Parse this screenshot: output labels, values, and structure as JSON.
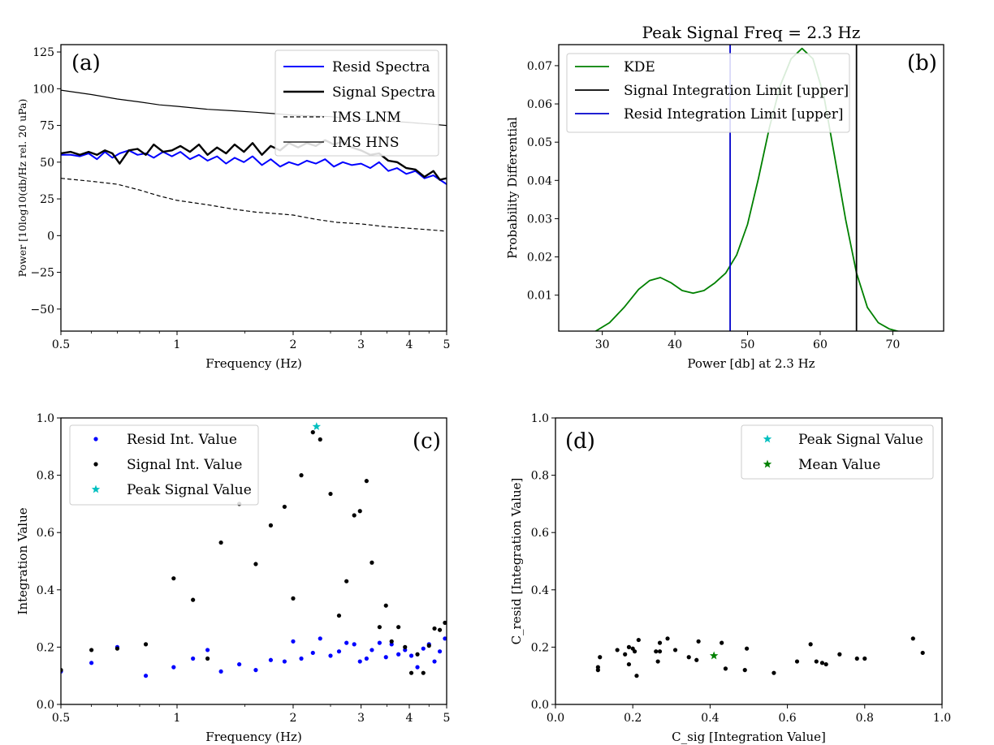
{
  "chart_data": [
    {
      "id": "a",
      "type": "line",
      "panel_label": "(a)",
      "xlabel": "Frequency (Hz)",
      "ylabel": "Power [10log10(db/Hz rel. 20 uPa)",
      "xscale": "log",
      "xlim": [
        0.5,
        5
      ],
      "ylim": [
        -65,
        130
      ],
      "xticks": [
        {
          "value": 0.5,
          "label": "0.5"
        },
        {
          "value": 1,
          "label": "1"
        },
        {
          "value": 2,
          "label": "2"
        },
        {
          "value": 3,
          "label": "3"
        },
        {
          "value": 4,
          "label": "4"
        },
        {
          "value": 5,
          "label": "5"
        }
      ],
      "yticks": [
        {
          "value": 125,
          "label": "125"
        },
        {
          "value": 100,
          "label": "100"
        },
        {
          "value": 75,
          "label": "75"
        },
        {
          "value": 50,
          "label": "50"
        },
        {
          "value": 25,
          "label": "25"
        },
        {
          "value": 0,
          "label": "0"
        },
        {
          "value": -25,
          "label": "−25"
        },
        {
          "value": -50,
          "label": "−50"
        }
      ],
      "legend_position": "top-right",
      "series": [
        {
          "name": "Resid Spectra",
          "color": "#0000ff",
          "style": "solid",
          "x": [
            0.5,
            0.53,
            0.56,
            0.59,
            0.62,
            0.65,
            0.68,
            0.71,
            0.75,
            0.79,
            0.83,
            0.87,
            0.92,
            0.97,
            1.02,
            1.08,
            1.14,
            1.2,
            1.27,
            1.34,
            1.41,
            1.49,
            1.57,
            1.66,
            1.75,
            1.85,
            1.95,
            2.06,
            2.17,
            2.29,
            2.42,
            2.55,
            2.69,
            2.84,
            3.0,
            3.17,
            3.34,
            3.53,
            3.72,
            3.93,
            4.15,
            4.38,
            4.62,
            4.8,
            5.0
          ],
          "y": [
            55,
            55,
            54,
            56,
            52,
            57,
            53,
            56,
            58,
            55,
            56,
            53,
            57,
            54,
            57,
            52,
            55,
            51,
            54,
            49,
            53,
            50,
            54,
            48,
            52,
            47,
            50,
            48,
            51,
            49,
            52,
            47,
            50,
            48,
            49,
            46,
            50,
            44,
            46,
            42,
            44,
            39,
            41,
            38,
            35
          ]
        },
        {
          "name": "Signal Spectra",
          "color": "#000000",
          "style": "solid-thick",
          "x": [
            0.5,
            0.53,
            0.56,
            0.59,
            0.62,
            0.65,
            0.68,
            0.71,
            0.75,
            0.79,
            0.83,
            0.87,
            0.92,
            0.97,
            1.02,
            1.08,
            1.14,
            1.2,
            1.27,
            1.34,
            1.41,
            1.49,
            1.57,
            1.66,
            1.75,
            1.85,
            1.95,
            2.06,
            2.17,
            2.29,
            2.42,
            2.55,
            2.69,
            2.84,
            3.0,
            3.17,
            3.34,
            3.53,
            3.72,
            3.93,
            4.15,
            4.38,
            4.62,
            4.8,
            5.0
          ],
          "y": [
            56,
            57,
            55,
            57,
            55,
            58,
            56,
            49,
            58,
            59,
            55,
            62,
            57,
            58,
            61,
            57,
            62,
            55,
            60,
            56,
            62,
            57,
            63,
            55,
            61,
            58,
            63,
            60,
            63,
            61,
            65,
            62,
            64,
            60,
            58,
            55,
            56,
            51,
            50,
            46,
            45,
            40,
            44,
            38,
            39
          ]
        },
        {
          "name": "IMS LNM",
          "color": "#000000",
          "style": "dashed",
          "x": [
            0.5,
            0.6,
            0.7,
            0.8,
            0.9,
            1.0,
            1.2,
            1.4,
            1.6,
            1.8,
            2.0,
            2.3,
            2.6,
            3.0,
            3.5,
            4.0,
            4.5,
            5.0
          ],
          "y": [
            39,
            37,
            35,
            31,
            27,
            24,
            21,
            18,
            16,
            15,
            14,
            11,
            9,
            8,
            6,
            5,
            4,
            3
          ]
        },
        {
          "name": "IMS HNS",
          "color": "#000000",
          "style": "solid-thin",
          "x": [
            0.5,
            0.6,
            0.7,
            0.8,
            0.9,
            1.0,
            1.2,
            1.4,
            1.6,
            1.8,
            2.0,
            2.5,
            3.0,
            3.5,
            4.0,
            4.5,
            5.0
          ],
          "y": [
            99,
            96,
            93,
            91,
            89,
            88,
            86,
            85,
            84,
            83,
            82,
            81,
            79,
            78,
            77,
            76,
            75
          ]
        }
      ]
    },
    {
      "id": "b",
      "type": "line",
      "panel_label": "(b)",
      "title": "Peak Signal Freq = 2.3 Hz",
      "xlabel": "Power [db] at 2.3 Hz",
      "ylabel": "Probability Differential",
      "xlim": [
        24,
        77
      ],
      "ylim": [
        0.0006,
        0.0755
      ],
      "xticks": [
        {
          "value": 30,
          "label": "30"
        },
        {
          "value": 40,
          "label": "40"
        },
        {
          "value": 50,
          "label": "50"
        },
        {
          "value": 60,
          "label": "60"
        },
        {
          "value": 70,
          "label": "70"
        }
      ],
      "yticks": [
        {
          "value": 0.07,
          "label": "0.07"
        },
        {
          "value": 0.06,
          "label": "0.06"
        },
        {
          "value": 0.05,
          "label": "0.05"
        },
        {
          "value": 0.04,
          "label": "0.04"
        },
        {
          "value": 0.03,
          "label": "0.03"
        },
        {
          "value": 0.02,
          "label": "0.02"
        },
        {
          "value": 0.01,
          "label": "0.01"
        }
      ],
      "legend_position": "top-left",
      "series": [
        {
          "name": "KDE",
          "color": "#008000",
          "style": "solid",
          "x": [
            29,
            31,
            33,
            35,
            36.5,
            38,
            39.5,
            41,
            42.5,
            44,
            45.5,
            47,
            48.5,
            50,
            51.5,
            53,
            54.5,
            56,
            57.5,
            59,
            60.5,
            62,
            63.5,
            65,
            66.5,
            68,
            69.5,
            71,
            72.5
          ],
          "y": [
            0.0005,
            0.0028,
            0.0068,
            0.0115,
            0.0138,
            0.0146,
            0.0132,
            0.0112,
            0.0105,
            0.0112,
            0.0132,
            0.0158,
            0.0205,
            0.0285,
            0.0405,
            0.0538,
            0.0648,
            0.0718,
            0.0745,
            0.0718,
            0.0622,
            0.0462,
            0.0298,
            0.0158,
            0.0068,
            0.0028,
            0.0012,
            0.0004,
            0.0001
          ]
        }
      ],
      "vlines": [
        {
          "name": "Signal Integration Limit [upper]",
          "x": 65,
          "color": "#000000"
        },
        {
          "name": "Resid Integration Limit [upper]",
          "x": 47.6,
          "color": "#0000cc"
        }
      ]
    },
    {
      "id": "c",
      "type": "scatter",
      "panel_label": "(c)",
      "xlabel": "Frequency (Hz)",
      "ylabel": "Integration Value",
      "xscale": "log",
      "xlim": [
        0.5,
        5
      ],
      "ylim": [
        0,
        1
      ],
      "xticks": [
        {
          "value": 0.5,
          "label": "0.5"
        },
        {
          "value": 1,
          "label": "1"
        },
        {
          "value": 2,
          "label": "2"
        },
        {
          "value": 3,
          "label": "3"
        },
        {
          "value": 4,
          "label": "4"
        },
        {
          "value": 5,
          "label": "5"
        }
      ],
      "yticks": [
        {
          "value": 1.0,
          "label": "1.0"
        },
        {
          "value": 0.8,
          "label": "0.8"
        },
        {
          "value": 0.6,
          "label": "0.6"
        },
        {
          "value": 0.4,
          "label": "0.4"
        },
        {
          "value": 0.2,
          "label": "0.2"
        },
        {
          "value": 0.0,
          "label": "0.0"
        }
      ],
      "legend_position": "top-left",
      "series": [
        {
          "name": "Resid Int. Value",
          "color": "#0000ff",
          "marker": "dot",
          "x": [
            0.5,
            0.6,
            0.7,
            0.83,
            0.98,
            1.1,
            1.2,
            1.3,
            1.45,
            1.6,
            1.75,
            1.9,
            2.0,
            2.1,
            2.25,
            2.35,
            2.5,
            2.63,
            2.75,
            2.88,
            2.98,
            3.1,
            3.2,
            3.35,
            3.48,
            3.6,
            3.75,
            3.9,
            4.05,
            4.2,
            4.35,
            4.5,
            4.65,
            4.8,
            4.95
          ],
          "y": [
            0.115,
            0.145,
            0.2,
            0.1,
            0.13,
            0.16,
            0.19,
            0.115,
            0.14,
            0.12,
            0.155,
            0.15,
            0.22,
            0.16,
            0.18,
            0.23,
            0.17,
            0.185,
            0.215,
            0.21,
            0.15,
            0.16,
            0.19,
            0.215,
            0.165,
            0.21,
            0.175,
            0.19,
            0.17,
            0.13,
            0.195,
            0.21,
            0.15,
            0.185,
            0.23
          ]
        },
        {
          "name": "Signal Int. Value",
          "color": "#000000",
          "marker": "dot",
          "x": [
            0.5,
            0.6,
            0.7,
            0.83,
            0.98,
            1.1,
            1.2,
            1.3,
            1.45,
            1.6,
            1.75,
            1.9,
            2.0,
            2.1,
            2.25,
            2.35,
            2.5,
            2.63,
            2.75,
            2.88,
            2.98,
            3.1,
            3.2,
            3.35,
            3.48,
            3.6,
            3.75,
            3.9,
            4.05,
            4.2,
            4.35,
            4.5,
            4.65,
            4.8,
            4.95
          ],
          "y": [
            0.12,
            0.19,
            0.195,
            0.21,
            0.44,
            0.365,
            0.16,
            0.565,
            0.7,
            0.49,
            0.625,
            0.69,
            0.37,
            0.8,
            0.95,
            0.925,
            0.735,
            0.31,
            0.43,
            0.66,
            0.675,
            0.78,
            0.495,
            0.27,
            0.345,
            0.22,
            0.27,
            0.2,
            0.11,
            0.175,
            0.11,
            0.205,
            0.265,
            0.26,
            0.285
          ]
        },
        {
          "name": "Peak Signal Value",
          "color": "#00bfbf",
          "marker": "star",
          "x": [
            2.3
          ],
          "y": [
            0.97
          ]
        }
      ]
    },
    {
      "id": "d",
      "type": "scatter",
      "panel_label": "(d)",
      "xlabel": "C_sig [Integration Value]",
      "ylabel": "C_resid [Integration Value]",
      "xlim": [
        0,
        1
      ],
      "ylim": [
        0,
        1
      ],
      "xticks": [
        {
          "value": 0.0,
          "label": "0.0"
        },
        {
          "value": 0.2,
          "label": "0.2"
        },
        {
          "value": 0.4,
          "label": "0.4"
        },
        {
          "value": 0.6,
          "label": "0.6"
        },
        {
          "value": 0.8,
          "label": "0.8"
        },
        {
          "value": 1.0,
          "label": "1.0"
        }
      ],
      "yticks": [
        {
          "value": 1.0,
          "label": "1.0"
        },
        {
          "value": 0.8,
          "label": "0.8"
        },
        {
          "value": 0.6,
          "label": "0.6"
        },
        {
          "value": 0.4,
          "label": "0.4"
        },
        {
          "value": 0.2,
          "label": "0.2"
        },
        {
          "value": 0.0,
          "label": "0.0"
        }
      ],
      "legend_position": "top-right",
      "points": {
        "color": "#000000",
        "x": [
          0.11,
          0.11,
          0.115,
          0.16,
          0.18,
          0.19,
          0.19,
          0.2,
          0.205,
          0.21,
          0.215,
          0.26,
          0.265,
          0.27,
          0.27,
          0.29,
          0.31,
          0.345,
          0.365,
          0.37,
          0.43,
          0.44,
          0.49,
          0.495,
          0.565,
          0.625,
          0.66,
          0.675,
          0.69,
          0.7,
          0.735,
          0.78,
          0.8,
          0.925,
          0.95
        ],
        "y": [
          0.13,
          0.12,
          0.165,
          0.19,
          0.175,
          0.14,
          0.2,
          0.195,
          0.185,
          0.1,
          0.225,
          0.185,
          0.15,
          0.215,
          0.185,
          0.23,
          0.19,
          0.165,
          0.155,
          0.22,
          0.215,
          0.125,
          0.12,
          0.195,
          0.11,
          0.15,
          0.21,
          0.15,
          0.145,
          0.14,
          0.175,
          0.16,
          0.16,
          0.23,
          0.18
        ]
      },
      "series": [
        {
          "name": "Peak Signal Value",
          "color": "#00bfbf",
          "marker": "star",
          "x": [],
          "y": []
        },
        {
          "name": "Mean Value",
          "color": "#008000",
          "marker": "star",
          "x": [
            0.41
          ],
          "y": [
            0.17
          ]
        }
      ]
    }
  ]
}
